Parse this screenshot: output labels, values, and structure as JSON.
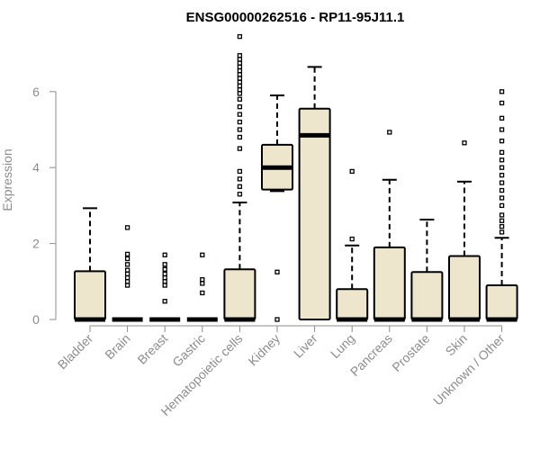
{
  "chart_data": {
    "type": "boxplot",
    "title": "ENSG00000262516 - RP11-95J11.1",
    "xlabel": "",
    "ylabel": "Expression",
    "ylim": [
      0,
      7.6
    ],
    "yticks": [
      0,
      2,
      4,
      6
    ],
    "grid": false,
    "legend": "none",
    "colors": {
      "box_fill": "#ede6cc",
      "stroke": "#000000",
      "axis": "#8c8c8c"
    },
    "categories": [
      "Bladder",
      "Brain",
      "Breast",
      "Gastric",
      "Hematopoietic cells",
      "Kidney",
      "Liver",
      "Lung",
      "Pancreas",
      "Prostate",
      "Skin",
      "Unknown / Other"
    ],
    "boxes": [
      {
        "category": "Bladder",
        "q1": 0,
        "median": 0,
        "q3": 1.27,
        "whisker_low": 0,
        "whisker_high": 2.93,
        "outliers": []
      },
      {
        "category": "Brain",
        "q1": 0,
        "median": 0,
        "q3": 0,
        "whisker_low": 0,
        "whisker_high": 0,
        "outliers": [
          0.9,
          1.0,
          1.1,
          1.2,
          1.3,
          1.45,
          1.6,
          1.72,
          2.42
        ]
      },
      {
        "category": "Breast",
        "q1": 0,
        "median": 0,
        "q3": 0,
        "whisker_low": 0,
        "whisker_high": 0,
        "outliers": [
          0.48,
          0.9,
          1.0,
          1.1,
          1.2,
          1.32,
          1.45,
          1.7
        ]
      },
      {
        "category": "Gastric",
        "q1": 0,
        "median": 0,
        "q3": 0,
        "whisker_low": 0,
        "whisker_high": 0,
        "outliers": [
          0.7,
          0.95,
          1.05,
          1.7
        ]
      },
      {
        "category": "Hematopoietic cells",
        "q1": 0,
        "median": 0,
        "q3": 1.32,
        "whisker_low": 0,
        "whisker_high": 3.08,
        "outliers": [
          3.3,
          3.5,
          3.7,
          3.9,
          4.5,
          4.8,
          5.0,
          5.2,
          5.4,
          5.6,
          5.8,
          5.95,
          6.05,
          6.15,
          6.25,
          6.35,
          6.45,
          6.55,
          6.65,
          6.75,
          6.85,
          6.95,
          7.45
        ]
      },
      {
        "category": "Kidney",
        "q1": 3.42,
        "median": 4.0,
        "q3": 4.6,
        "whisker_low": 3.38,
        "whisker_high": 5.9,
        "outliers": [
          1.25,
          0
        ]
      },
      {
        "category": "Liver",
        "q1": 0,
        "median": 4.85,
        "q3": 5.55,
        "whisker_low": 0,
        "whisker_high": 6.65,
        "outliers": []
      },
      {
        "category": "Lung",
        "q1": 0,
        "median": 0,
        "q3": 0.8,
        "whisker_low": 0,
        "whisker_high": 1.95,
        "outliers": [
          2.12,
          3.9
        ]
      },
      {
        "category": "Pancreas",
        "q1": 0,
        "median": 0,
        "q3": 1.9,
        "whisker_low": 0,
        "whisker_high": 3.68,
        "outliers": [
          4.93
        ]
      },
      {
        "category": "Prostate",
        "q1": 0,
        "median": 0,
        "q3": 1.25,
        "whisker_low": 0,
        "whisker_high": 2.63,
        "outliers": []
      },
      {
        "category": "Skin",
        "q1": 0,
        "median": 0,
        "q3": 1.67,
        "whisker_low": 0,
        "whisker_high": 3.63,
        "outliers": [
          4.65
        ]
      },
      {
        "category": "Unknown / Other",
        "q1": 0,
        "median": 0,
        "q3": 0.9,
        "whisker_low": 0,
        "whisker_high": 2.15,
        "outliers": [
          2.3,
          2.45,
          2.6,
          2.75,
          3.0,
          3.2,
          3.4,
          3.6,
          3.8,
          4.0,
          4.2,
          4.4,
          4.7,
          5.0,
          5.3,
          5.7,
          6.0
        ]
      }
    ]
  }
}
